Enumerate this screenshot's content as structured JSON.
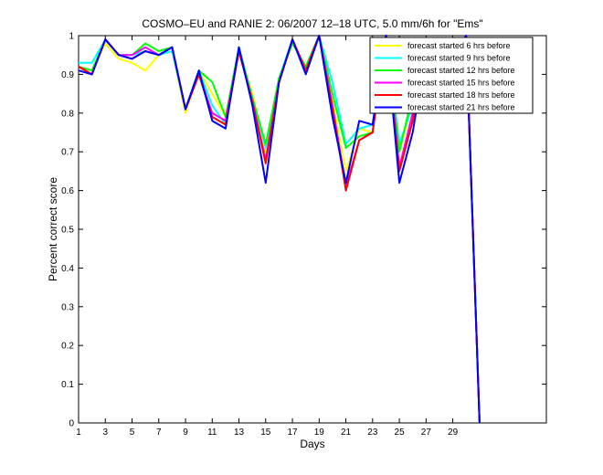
{
  "chart_data": {
    "type": "line",
    "title": "COSMO–EU and RANIE 2: 06/2007 12–18 UTC, 5.0 mm/6h for \"Ems\"",
    "xlabel": "Days",
    "ylabel": "Percent correct score",
    "xlim": [
      1,
      36
    ],
    "ylim": [
      0,
      1
    ],
    "xticks": [
      1,
      3,
      5,
      7,
      9,
      11,
      13,
      15,
      17,
      19,
      21,
      23,
      25,
      27,
      29
    ],
    "yticks": [
      0,
      0.1,
      0.2,
      0.3,
      0.4,
      0.5,
      0.6,
      0.7,
      0.8,
      0.9,
      1
    ],
    "ytick_labels": [
      "0",
      "0.1",
      "0.2",
      "0.3",
      "0.4",
      "0.5",
      "0.6",
      "0.7",
      "0.8",
      "0.9",
      "1"
    ],
    "grid": false,
    "legend_position": "top-right",
    "x": [
      1,
      2,
      3,
      4,
      5,
      6,
      7,
      8,
      9,
      10,
      11,
      12,
      13,
      14,
      15,
      16,
      17,
      18,
      19,
      20,
      21,
      22,
      23,
      24,
      25,
      26,
      27,
      28,
      29,
      30,
      31
    ],
    "series": [
      {
        "name": "forecast started 6 hrs before",
        "color": "#ffff00",
        "values": [
          0.92,
          0.91,
          0.98,
          0.94,
          0.93,
          0.91,
          0.95,
          0.96,
          0.8,
          0.91,
          0.85,
          0.79,
          0.96,
          0.85,
          0.7,
          0.88,
          0.98,
          0.92,
          1.0,
          0.83,
          0.65,
          0.76,
          0.75,
          1.0,
          0.7,
          0.83,
          0.98,
          0.94,
          0.94,
          1.0,
          0.0
        ]
      },
      {
        "name": "forecast started 9 hrs before",
        "color": "#00ffff",
        "values": [
          0.93,
          0.93,
          0.99,
          0.95,
          0.95,
          0.96,
          0.95,
          0.96,
          0.81,
          0.91,
          0.82,
          0.77,
          0.96,
          0.84,
          0.71,
          0.89,
          0.99,
          0.91,
          1.0,
          0.88,
          0.72,
          0.76,
          0.77,
          1.0,
          0.72,
          0.82,
          0.96,
          0.95,
          0.94,
          1.0,
          0.0
        ]
      },
      {
        "name": "forecast started 12 hrs before",
        "color": "#00ff00",
        "values": [
          0.92,
          0.91,
          0.99,
          0.95,
          0.95,
          0.98,
          0.96,
          0.97,
          0.81,
          0.91,
          0.88,
          0.79,
          0.97,
          0.84,
          0.72,
          0.89,
          0.98,
          0.92,
          1.0,
          0.85,
          0.71,
          0.74,
          0.75,
          1.0,
          0.7,
          0.85,
          0.97,
          0.94,
          0.94,
          1.0,
          0.0
        ]
      },
      {
        "name": "forecast started 15 hrs before",
        "color": "#ff00ff",
        "values": [
          0.92,
          0.9,
          0.99,
          0.95,
          0.95,
          0.97,
          0.95,
          0.97,
          0.81,
          0.9,
          0.8,
          0.78,
          0.96,
          0.83,
          0.68,
          0.88,
          0.99,
          0.91,
          1.0,
          0.82,
          0.61,
          0.73,
          0.75,
          1.0,
          0.66,
          0.8,
          0.97,
          0.94,
          0.94,
          1.0,
          0.0
        ]
      },
      {
        "name": "forecast started 18 hrs before",
        "color": "#ff0000",
        "values": [
          0.92,
          0.9,
          0.99,
          0.95,
          0.94,
          0.96,
          0.95,
          0.97,
          0.81,
          0.9,
          0.79,
          0.77,
          0.96,
          0.83,
          0.67,
          0.88,
          0.99,
          0.91,
          1.0,
          0.81,
          0.6,
          0.73,
          0.75,
          1.0,
          0.65,
          0.78,
          0.97,
          0.94,
          0.94,
          1.0,
          0.0
        ]
      },
      {
        "name": "forecast started 21 hrs before",
        "color": "#0000ff",
        "values": [
          0.91,
          0.9,
          0.99,
          0.95,
          0.94,
          0.96,
          0.95,
          0.97,
          0.81,
          0.91,
          0.78,
          0.76,
          0.97,
          0.82,
          0.62,
          0.88,
          0.99,
          0.9,
          1.0,
          0.79,
          0.62,
          0.78,
          0.77,
          1.0,
          0.62,
          0.75,
          0.96,
          0.94,
          0.94,
          1.0,
          0.0
        ]
      }
    ]
  }
}
